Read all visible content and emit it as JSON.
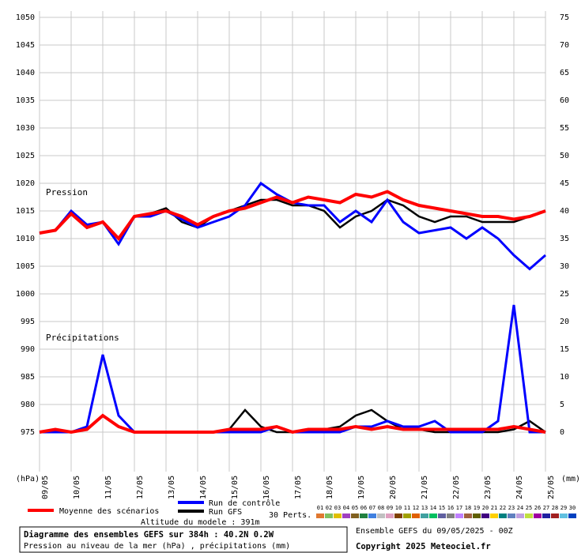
{
  "chart_data": {
    "type": "line",
    "annotations": [
      "Pression",
      "Précipitations"
    ],
    "ylabel": "(hPa)",
    "y2label": "(mm)",
    "x": [
      0,
      0.5,
      1,
      1.5,
      2,
      2.5,
      3,
      3.5,
      4,
      4.5,
      5,
      5.5,
      6,
      6.5,
      7,
      7.5,
      8,
      8.5,
      9,
      9.5,
      10,
      10.5,
      11,
      11.5,
      12,
      12.5,
      13,
      13.5,
      14,
      14.5,
      15,
      15.5,
      16
    ],
    "xlim": [
      0,
      16
    ],
    "xticks": [
      {
        "value": 0,
        "label": "09/05"
      },
      {
        "value": 1,
        "label": "10/05"
      },
      {
        "value": 2,
        "label": "11/05"
      },
      {
        "value": 3,
        "label": "12/05"
      },
      {
        "value": 4,
        "label": "13/05"
      },
      {
        "value": 5,
        "label": "14/05"
      },
      {
        "value": 6,
        "label": "15/05"
      },
      {
        "value": 7,
        "label": "16/05"
      },
      {
        "value": 8,
        "label": "17/05"
      },
      {
        "value": 9,
        "label": "18/05"
      },
      {
        "value": 10,
        "label": "19/05"
      },
      {
        "value": 11,
        "label": "20/05"
      },
      {
        "value": 12,
        "label": "21/05"
      },
      {
        "value": 13,
        "label": "22/05"
      },
      {
        "value": 14,
        "label": "23/05"
      },
      {
        "value": 15,
        "label": "24/05"
      },
      {
        "value": 16,
        "label": "25/05"
      }
    ],
    "ylim": [
      975,
      1050
    ],
    "yticks": [
      975,
      980,
      985,
      990,
      995,
      1000,
      1005,
      1010,
      1015,
      1020,
      1025,
      1030,
      1035,
      1040,
      1045,
      1050
    ],
    "y2lim": [
      0,
      75
    ],
    "y2ticks": [
      0,
      5,
      10,
      15,
      20,
      25,
      30,
      35,
      40,
      45,
      50,
      55,
      60,
      65,
      70,
      75
    ],
    "grid": true,
    "series": [
      {
        "name": "Run GFS",
        "color": "#000000",
        "values": [
          1011,
          1011.5,
          1015,
          1012,
          1013,
          1009,
          1014,
          1014.5,
          1015.5,
          1013,
          1012,
          1014,
          1015,
          1016,
          1017,
          1017,
          1016,
          1016,
          1015,
          1012,
          1014,
          1015,
          1017,
          1016,
          1014,
          1013,
          1014,
          1014,
          1013,
          1013,
          1013,
          1014,
          1015
        ],
        "precip": [
          0,
          0,
          0,
          0.5,
          3,
          1,
          0,
          0,
          0,
          0,
          0,
          0,
          0.5,
          4,
          1,
          0,
          0,
          0.5,
          0.5,
          1,
          3,
          4,
          2,
          0.5,
          0.5,
          0,
          0,
          0,
          0,
          0,
          0.5,
          2,
          0
        ]
      },
      {
        "name": "Run de contrôle",
        "color": "#0000ff",
        "values": [
          1011,
          1011.5,
          1015,
          1012.5,
          1013,
          1009,
          1014,
          1014,
          1015,
          1013.5,
          1012,
          1013,
          1014,
          1016,
          1020,
          1018,
          1016.5,
          1016,
          1016,
          1013,
          1015,
          1013,
          1017,
          1013,
          1011,
          1011.5,
          1012,
          1010,
          1012,
          1010,
          1007,
          1004.5,
          1007
        ],
        "precip": [
          0,
          0,
          0,
          1,
          14,
          3,
          0,
          0,
          0,
          0,
          0,
          0,
          0,
          0,
          0,
          1,
          0,
          0,
          0,
          0,
          1,
          1,
          2,
          1,
          1,
          2,
          0,
          0,
          0,
          2,
          23,
          0,
          0
        ]
      },
      {
        "name": "Moyenne des scénarios",
        "color": "#ff0000",
        "values": [
          1011,
          1011.5,
          1014.5,
          1012,
          1013,
          1010,
          1014,
          1014.5,
          1015,
          1014,
          1012.5,
          1014,
          1015,
          1015.5,
          1016.5,
          1017.5,
          1016.5,
          1017.5,
          1017,
          1016.5,
          1018,
          1017.5,
          1018.5,
          1017,
          1016,
          1015.5,
          1015,
          1014.5,
          1014,
          1014,
          1013.5,
          1014,
          1015
        ],
        "precip": [
          0,
          0.5,
          0,
          0.5,
          3,
          1,
          0,
          0,
          0,
          0,
          0,
          0,
          0.5,
          0.5,
          0.5,
          1,
          0,
          0.5,
          0.5,
          0.5,
          1,
          0.5,
          1,
          0.5,
          0.5,
          0.5,
          0.5,
          0.5,
          0.5,
          0.5,
          1,
          0.5,
          0
        ]
      }
    ],
    "perturbations": {
      "label": "30 Perts.",
      "members": [
        {
          "name": "01",
          "color": "#e07830"
        },
        {
          "name": "02",
          "color": "#80c060"
        },
        {
          "name": "03",
          "color": "#e0c000"
        },
        {
          "name": "04",
          "color": "#a040c0"
        },
        {
          "name": "05",
          "color": "#806020"
        },
        {
          "name": "06",
          "color": "#208040"
        },
        {
          "name": "07",
          "color": "#4080e0"
        },
        {
          "name": "08",
          "color": "#c0c0c0"
        },
        {
          "name": "09",
          "color": "#e0a0c0"
        },
        {
          "name": "10",
          "color": "#804000"
        },
        {
          "name": "11",
          "color": "#a0a000"
        },
        {
          "name": "12",
          "color": "#e06000"
        },
        {
          "name": "13",
          "color": "#40a0a0"
        },
        {
          "name": "14",
          "color": "#00c060"
        },
        {
          "name": "15",
          "color": "#6060a0"
        },
        {
          "name": "16",
          "color": "#808080"
        },
        {
          "name": "17",
          "color": "#c080ff"
        },
        {
          "name": "18",
          "color": "#a06040"
        },
        {
          "name": "19",
          "color": "#606000"
        },
        {
          "name": "20",
          "color": "#400080"
        },
        {
          "name": "21",
          "color": "#ffd000"
        },
        {
          "name": "22",
          "color": "#008080"
        },
        {
          "name": "23",
          "color": "#6080c0"
        },
        {
          "name": "24",
          "color": "#c0a0e0"
        },
        {
          "name": "25",
          "color": "#c0e040"
        },
        {
          "name": "26",
          "color": "#a000a0"
        },
        {
          "name": "27",
          "color": "#2020a0"
        },
        {
          "name": "28",
          "color": "#a02020"
        },
        {
          "name": "29",
          "color": "#60c0e0"
        },
        {
          "name": "30",
          "color": "#0040c0"
        }
      ]
    },
    "altitude": "Altitude du modele : 391m",
    "title": "Diagramme des ensembles GEFS sur 384h : 40.2N 0.2W",
    "subtitle": "Pression au niveau de la mer (hPa) , précipitations (mm)",
    "run_info": "Ensemble GEFS du 09/05/2025 - 00Z",
    "copyright": "Copyright 2025 Meteociel.fr"
  }
}
